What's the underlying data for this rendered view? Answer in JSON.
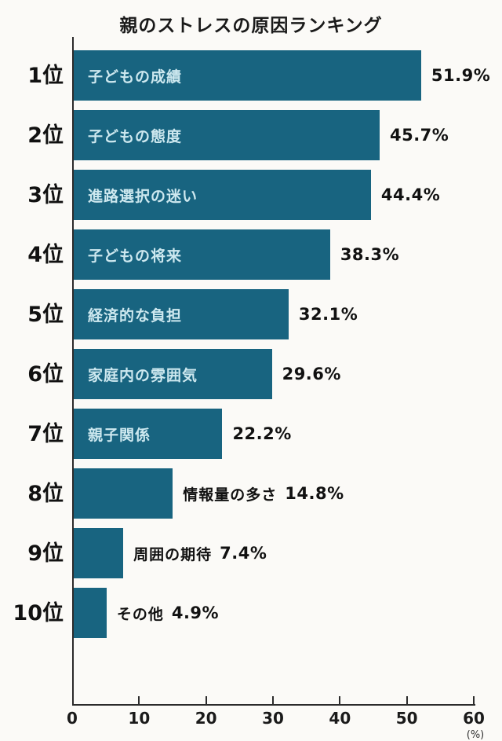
{
  "page": {
    "background": "#fbfaf7"
  },
  "chart_data": {
    "type": "bar",
    "orientation": "horizontal",
    "title": "親のストレスの原因ランキング",
    "xlabel": "",
    "ylabel": "",
    "x_unit_label": "(%)",
    "xlim": [
      0,
      60
    ],
    "x_ticks": [
      0,
      10,
      20,
      30,
      40,
      50,
      60
    ],
    "grid": false,
    "legend": false,
    "bar_color": "#186480",
    "inside_label_color": "#cde8ef",
    "axis_color": "#2b2b2b",
    "rows": [
      {
        "rank": "1位",
        "label": "子どもの成績",
        "value": 51.9,
        "value_label": "51.9%",
        "label_position": "inside"
      },
      {
        "rank": "2位",
        "label": "子どもの態度",
        "value": 45.7,
        "value_label": "45.7%",
        "label_position": "inside"
      },
      {
        "rank": "3位",
        "label": "進路選択の迷い",
        "value": 44.4,
        "value_label": "44.4%",
        "label_position": "inside"
      },
      {
        "rank": "4位",
        "label": "子どもの将来",
        "value": 38.3,
        "value_label": "38.3%",
        "label_position": "inside"
      },
      {
        "rank": "5位",
        "label": "経済的な負担",
        "value": 32.1,
        "value_label": "32.1%",
        "label_position": "inside"
      },
      {
        "rank": "6位",
        "label": "家庭内の雰囲気",
        "value": 29.6,
        "value_label": "29.6%",
        "label_position": "inside"
      },
      {
        "rank": "7位",
        "label": "親子関係",
        "value": 22.2,
        "value_label": "22.2%",
        "label_position": "inside"
      },
      {
        "rank": "8位",
        "label": "情報量の多さ",
        "value": 14.8,
        "value_label": "14.8%",
        "label_position": "outside"
      },
      {
        "rank": "9位",
        "label": "周囲の期待",
        "value": 7.4,
        "value_label": "7.4%",
        "label_position": "outside"
      },
      {
        "rank": "10位",
        "label": "その他",
        "value": 4.9,
        "value_label": "4.9%",
        "label_position": "outside"
      }
    ]
  }
}
